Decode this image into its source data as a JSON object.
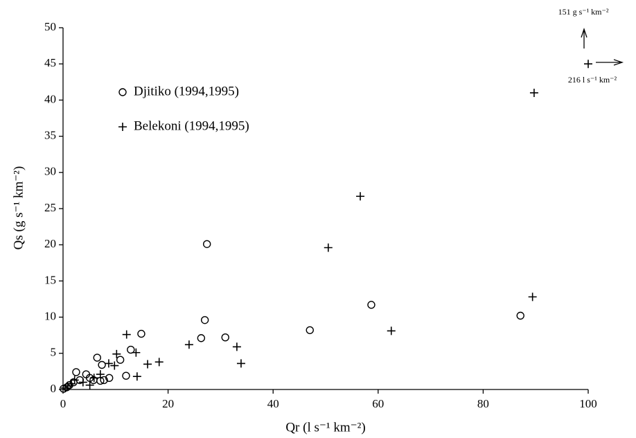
{
  "chart_data": {
    "type": "scatter",
    "x_label": "Qr  (l s⁻¹ km⁻²)",
    "y_label": "Qs  (g s⁻¹ km⁻²)",
    "annotations": [
      "151 g s⁻¹ km⁻²",
      "216 l s⁻¹ km⁻²"
    ],
    "xlim": [
      0,
      100
    ],
    "xticks": [
      0,
      20,
      40,
      60,
      80,
      100
    ],
    "ylim": [
      0,
      50
    ],
    "yticks": [
      0,
      5,
      10,
      15,
      20,
      25,
      30,
      35,
      40,
      45,
      50
    ],
    "grid": false,
    "series": [
      {
        "name": "Djitiko (1994,1995)",
        "color": "#000000",
        "marker": "circle",
        "x": [
          27.4,
          27.0,
          26.3,
          30.9,
          47.0,
          58.7,
          87.1,
          14.9,
          12.9,
          10.9,
          12.0,
          6.5,
          7.4,
          8.8,
          7.8,
          7.1,
          4.4,
          2.5,
          3.2,
          2.0,
          1.2,
          0.7,
          0.1,
          5.8,
          5.1
        ],
        "values": [
          20.1,
          9.6,
          7.1,
          7.2,
          8.2,
          11.7,
          10.2,
          7.7,
          5.5,
          4.1,
          1.9,
          4.4,
          3.4,
          1.6,
          1.3,
          1.2,
          2.1,
          2.4,
          1.3,
          1.0,
          0.6,
          0.3,
          0.1,
          1.3,
          1.6
        ]
      },
      {
        "name": "Belekoni (1994,1995)",
        "color": "#000000",
        "marker": "plus",
        "x": [
          100,
          89.7,
          56.6,
          50.5,
          89.4,
          62.5,
          33.1,
          33.9,
          24.0,
          12.1,
          13.9,
          14.1,
          16.1,
          18.3,
          10.2,
          9.8,
          8.7,
          7.1,
          5.9,
          5.1,
          3.8,
          2.2,
          1.6,
          0.9,
          0.4
        ],
        "values": [
          45,
          41.0,
          26.7,
          19.6,
          12.8,
          8.1,
          5.9,
          3.6,
          6.2,
          7.6,
          5.1,
          1.8,
          3.5,
          3.8,
          4.9,
          3.3,
          3.6,
          2.1,
          1.6,
          0.6,
          1.0,
          1.3,
          0.8,
          0.5,
          0.2
        ]
      }
    ]
  }
}
